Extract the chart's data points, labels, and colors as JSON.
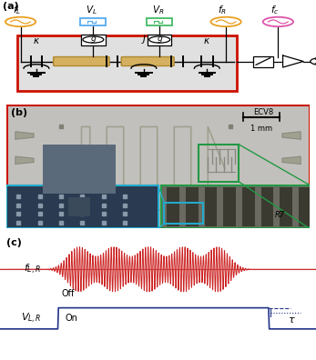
{
  "fig_width": 3.47,
  "fig_height": 3.96,
  "dpi": 100,
  "bg_color": "#ffffff",
  "panel_a": {
    "label": "(a)",
    "box_color": "#cc1100",
    "box_bg": "#e8e8e8",
    "resonator_color": "#d4b060",
    "resonator_edge": "#b08830",
    "signal_colors": [
      "#e8a020",
      "#55aaee",
      "#44bb66",
      "#e8a020",
      "#dd55aa"
    ],
    "signal_labels": [
      "$f_L$",
      "$V_L$",
      "$V_R$",
      "$f_R$",
      "$f_c$"
    ]
  },
  "panel_b": {
    "label": "(b)",
    "red_box": "#cc1100",
    "green_box": "#229944",
    "cyan_box": "#22aacc",
    "chip_bg": "#c0bfbe",
    "chip_dark": "#888885",
    "scale_text": "1 mm",
    "label_ecv8": "ECV8",
    "label_r7": "R7",
    "green_zoom_bg": "#6a6a60",
    "green_zoom_dark": "#3a3a30",
    "cyan_zoom_bg": "#2a3a50",
    "cyan_zoom_light": "#8899aa"
  },
  "panel_c": {
    "label": "(c)",
    "rf_color": "#cc2222",
    "rf_line_color": "#cc5555",
    "v_color": "#223388",
    "label_fLR": "$f_{L,R}$",
    "label_VLR": "$V_{L,R}$",
    "off_text": "Off",
    "on_text": "On",
    "tau_text": "$\\tau$"
  }
}
